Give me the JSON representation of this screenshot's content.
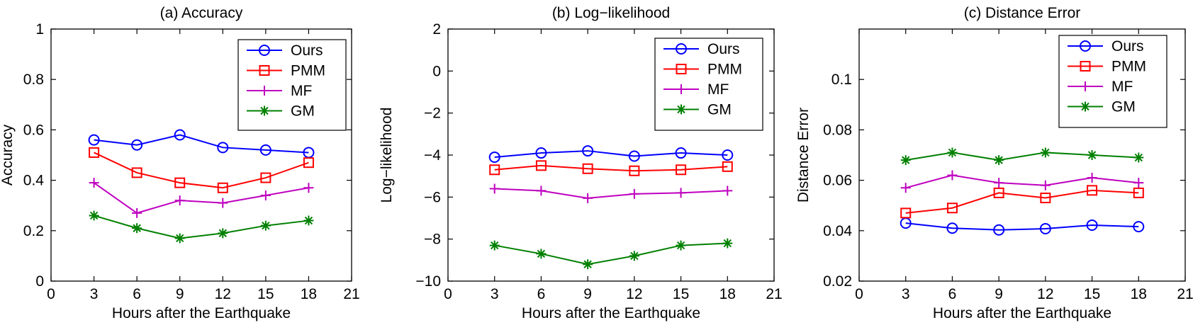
{
  "chart_data": [
    {
      "type": "line",
      "title": "(a) Accuracy",
      "xlabel": "Hours after the Earthquake",
      "ylabel": "Accuracy",
      "xlim": [
        0,
        21
      ],
      "ylim": [
        0,
        1
      ],
      "xticks": [
        0,
        3,
        6,
        9,
        12,
        15,
        18,
        21
      ],
      "xtick_labels": [
        "0",
        "3",
        "6",
        "9",
        "12",
        "15",
        "18",
        "21"
      ],
      "yticks": [
        0,
        0.2,
        0.4,
        0.6,
        0.8,
        1
      ],
      "ytick_labels": [
        "0",
        "0.2",
        "0.4",
        "0.6",
        "0.8",
        "1"
      ],
      "x": [
        3,
        6,
        9,
        12,
        15,
        18
      ],
      "legend_position": "top-right",
      "series": [
        {
          "name": "Ours",
          "color": "#0000ff",
          "marker": "circle",
          "values": [
            0.56,
            0.54,
            0.58,
            0.53,
            0.52,
            0.51
          ]
        },
        {
          "name": "PMM",
          "color": "#ff0000",
          "marker": "square",
          "values": [
            0.51,
            0.43,
            0.39,
            0.37,
            0.41,
            0.47
          ]
        },
        {
          "name": "MF",
          "color": "#bf00bf",
          "marker": "plus",
          "values": [
            0.39,
            0.27,
            0.32,
            0.31,
            0.34,
            0.37
          ]
        },
        {
          "name": "GM",
          "color": "#008000",
          "marker": "asterisk",
          "values": [
            0.26,
            0.21,
            0.17,
            0.19,
            0.22,
            0.24
          ]
        }
      ]
    },
    {
      "type": "line",
      "title": "(b) Log−likelihood",
      "xlabel": "Hours after the Earthquake",
      "ylabel": "Log−likelihood",
      "xlim": [
        0,
        21
      ],
      "ylim": [
        -10,
        2
      ],
      "xticks": [
        0,
        3,
        6,
        9,
        12,
        15,
        18,
        21
      ],
      "xtick_labels": [
        "0",
        "3",
        "6",
        "9",
        "12",
        "15",
        "18",
        "21"
      ],
      "yticks": [
        -10,
        -8,
        -6,
        -4,
        -2,
        0,
        2
      ],
      "ytick_labels": [
        "−10",
        "−8",
        "−6",
        "−4",
        "−2",
        "0",
        "2"
      ],
      "x": [
        3,
        6,
        9,
        12,
        15,
        18
      ],
      "legend_position": "top-right",
      "series": [
        {
          "name": "Ours",
          "color": "#0000ff",
          "marker": "circle",
          "values": [
            -4.1,
            -3.9,
            -3.8,
            -4.05,
            -3.9,
            -4.0
          ]
        },
        {
          "name": "PMM",
          "color": "#ff0000",
          "marker": "square",
          "values": [
            -4.7,
            -4.5,
            -4.65,
            -4.75,
            -4.7,
            -4.55
          ]
        },
        {
          "name": "MF",
          "color": "#bf00bf",
          "marker": "plus",
          "values": [
            -5.6,
            -5.7,
            -6.05,
            -5.85,
            -5.8,
            -5.7
          ]
        },
        {
          "name": "GM",
          "color": "#008000",
          "marker": "asterisk",
          "values": [
            -8.3,
            -8.7,
            -9.2,
            -8.8,
            -8.3,
            -8.2
          ]
        }
      ]
    },
    {
      "type": "line",
      "title": "(c) Distance Error",
      "xlabel": "Hours after the Earthquake",
      "ylabel": "Distance Error",
      "xlim": [
        0,
        21
      ],
      "ylim": [
        0.02,
        0.12
      ],
      "xticks": [
        0,
        3,
        6,
        9,
        12,
        15,
        18,
        21
      ],
      "xtick_labels": [
        "0",
        "3",
        "6",
        "9",
        "12",
        "15",
        "18",
        "21"
      ],
      "yticks": [
        0.02,
        0.04,
        0.06,
        0.08,
        0.1
      ],
      "ytick_labels": [
        "0.02",
        "0.04",
        "0.06",
        "0.08",
        "0.1"
      ],
      "x": [
        3,
        6,
        9,
        12,
        15,
        18
      ],
      "legend_position": "top-right",
      "series": [
        {
          "name": "Ours",
          "color": "#0000ff",
          "marker": "circle",
          "values": [
            0.043,
            0.041,
            0.0403,
            0.0408,
            0.0422,
            0.0416
          ]
        },
        {
          "name": "PMM",
          "color": "#ff0000",
          "marker": "square",
          "values": [
            0.047,
            0.049,
            0.055,
            0.053,
            0.056,
            0.055
          ]
        },
        {
          "name": "MF",
          "color": "#bf00bf",
          "marker": "plus",
          "values": [
            0.057,
            0.062,
            0.059,
            0.058,
            0.061,
            0.059
          ]
        },
        {
          "name": "GM",
          "color": "#008000",
          "marker": "asterisk",
          "values": [
            0.068,
            0.071,
            0.068,
            0.071,
            0.07,
            0.069
          ]
        }
      ]
    }
  ]
}
